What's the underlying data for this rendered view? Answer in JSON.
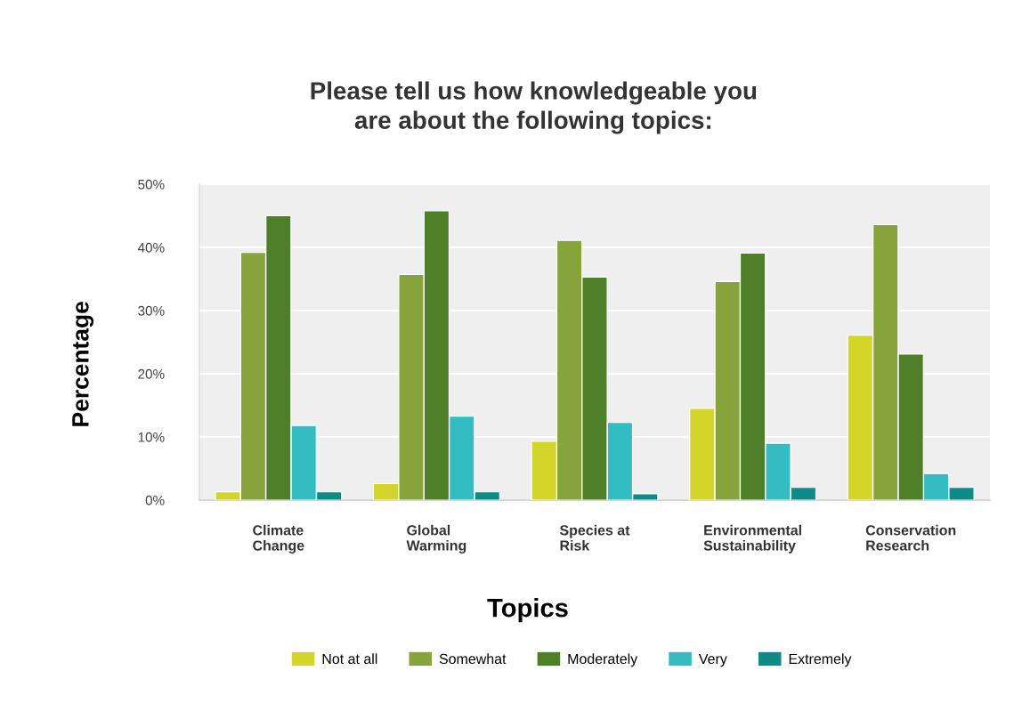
{
  "chart_data": {
    "type": "bar",
    "title": "Please tell us how knowledgeable you\nare about the following topics:",
    "xlabel": "Topics",
    "ylabel": "Percentage",
    "categories": [
      "Climate\nChange",
      "Global\nWarming",
      "Species at\nRisk",
      "Environmental\nSustainability",
      "Conservation\nResearch"
    ],
    "series": [
      {
        "name": "Not at all",
        "color": "#d4d52a",
        "values": [
          1.3,
          2.6,
          9.3,
          14.5,
          26.1
        ]
      },
      {
        "name": "Somewhat",
        "color": "#86a33c",
        "values": [
          39.2,
          35.7,
          41.1,
          34.6,
          43.6
        ]
      },
      {
        "name": "Moderately",
        "color": "#4f7f28",
        "values": [
          45.0,
          45.8,
          35.3,
          39.1,
          23.1
        ]
      },
      {
        "name": "Very",
        "color": "#33bdc3",
        "values": [
          11.8,
          13.3,
          12.3,
          9.0,
          4.2
        ]
      },
      {
        "name": "Extremely",
        "color": "#0e8a87",
        "values": [
          1.3,
          1.3,
          1.0,
          2.0,
          2.0
        ]
      }
    ],
    "ylim": [
      0,
      50
    ],
    "yticks": [
      {
        "value": 0,
        "label": "0%"
      },
      {
        "value": 10,
        "label": "10%"
      },
      {
        "value": 20,
        "label": "20%"
      },
      {
        "value": 30,
        "label": "30%"
      },
      {
        "value": 40,
        "label": "40%"
      },
      {
        "value": 50,
        "label": "50%"
      }
    ],
    "grid": "y",
    "legend": "bottom"
  }
}
